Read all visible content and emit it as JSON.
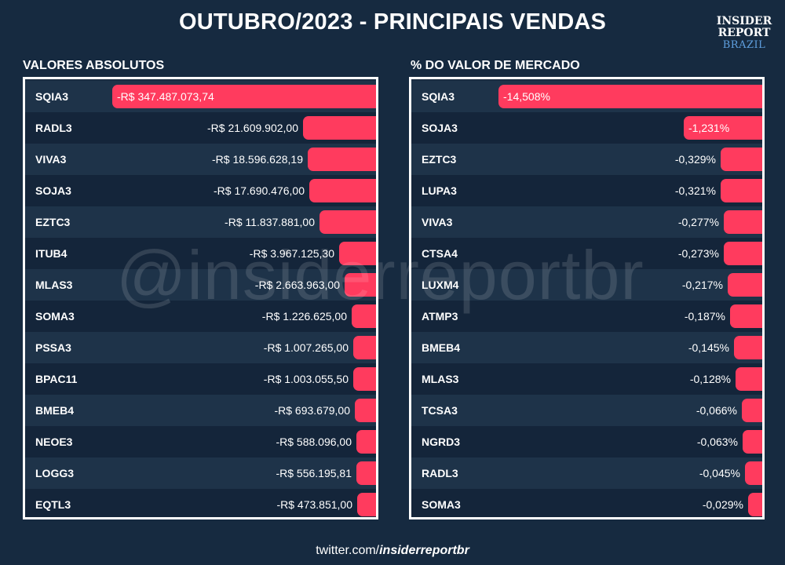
{
  "title": "OUTUBRO/2023 - PRINCIPAIS VENDAS",
  "logo": {
    "line1": "INSIDER",
    "line2": "REPORT",
    "line3": "BRAZIL"
  },
  "watermark": "@insiderreportbr",
  "footer": {
    "prefix": "twitter.com/",
    "handle": "insiderreportbr"
  },
  "colors": {
    "background": "#162a40",
    "bar": "#ff3b5e",
    "logo_accent": "#5fa0e0"
  },
  "chart_data": [
    {
      "type": "bar",
      "orientation": "horizontal",
      "title": "VALORES ABSOLUTOS",
      "categories": [
        "SQIA3",
        "RADL3",
        "VIVA3",
        "SOJA3",
        "EZTC3",
        "ITUB4",
        "MLAS3",
        "SOMA3",
        "PSSA3",
        "BPAC11",
        "BMEB4",
        "NEOE3",
        "LOGG3",
        "EQTL3"
      ],
      "values": [
        -347487073.74,
        -21609902.0,
        -18596628.19,
        -17690476.0,
        -11837881.0,
        -3967125.3,
        -2663963.0,
        -1226625.0,
        -1007265.0,
        -1003055.5,
        -693679.0,
        -588096.0,
        -556195.81,
        -473851.0
      ],
      "labels": [
        "-R$ 347.487.073,74",
        "-R$ 21.609.902,00",
        "-R$ 18.596.628,19",
        "-R$ 17.690.476,00",
        "-R$ 11.837.881,00",
        "-R$ 3.967.125,30",
        "-R$ 2.663.963,00",
        "-R$ 1.226.625,00",
        "-R$ 1.007.265,00",
        "-R$ 1.003.055,50",
        "-R$ 693.679,00",
        "-R$ 588.096,00",
        "-R$ 556.195,81",
        "-R$ 473.851,00"
      ]
    },
    {
      "type": "bar",
      "orientation": "horizontal",
      "title": "% DO VALOR DE MERCADO",
      "categories": [
        "SQIA3",
        "SOJA3",
        "EZTC3",
        "LUPA3",
        "VIVA3",
        "CTSA4",
        "LUXM4",
        "ATMP3",
        "BMEB4",
        "MLAS3",
        "TCSA3",
        "NGRD3",
        "RADL3",
        "SOMA3"
      ],
      "values": [
        -14.508,
        -1.231,
        -0.329,
        -0.321,
        -0.277,
        -0.273,
        -0.217,
        -0.187,
        -0.145,
        -0.128,
        -0.066,
        -0.063,
        -0.045,
        -0.029
      ],
      "labels": [
        "-14,508%",
        "-1,231%",
        "-0,329%",
        "-0,321%",
        "-0,277%",
        "-0,273%",
        "-0,217%",
        "-0,187%",
        "-0,145%",
        "-0,128%",
        "-0,066%",
        "-0,063%",
        "-0,045%",
        "-0,029%"
      ]
    }
  ]
}
